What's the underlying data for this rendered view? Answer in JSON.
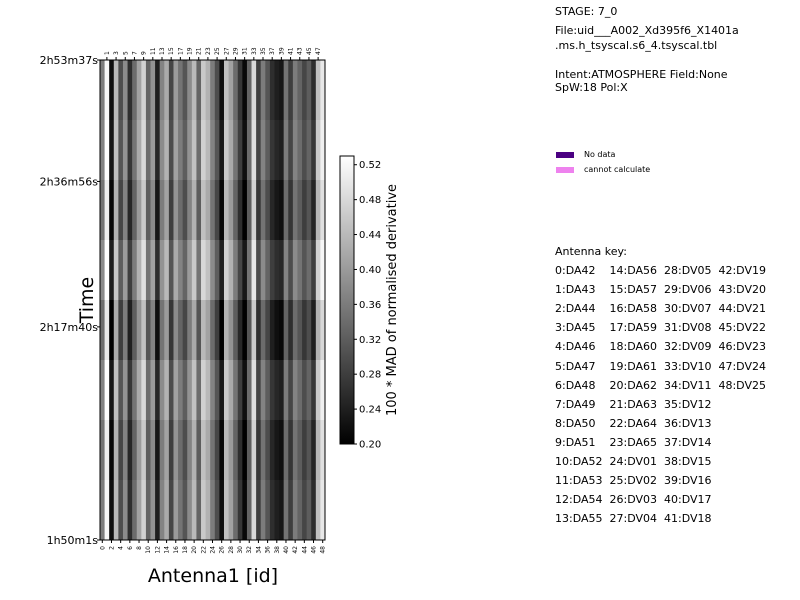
{
  "info": {
    "stage": "STAGE: 7_0",
    "file_line1": "File:uid___A002_Xd395f6_X1401a",
    "file_line2": ".ms.h_tsyscal.s6_4.tsyscal.tbl",
    "intent": "Intent:ATMOSPHERE Field:None",
    "spw": "SpW:18 Pol:X"
  },
  "legend": {
    "items": [
      {
        "label": "No data",
        "color": "#4b0082"
      },
      {
        "label": "cannot calculate",
        "color": "#ee82ee"
      }
    ]
  },
  "antenna_key": {
    "title": "Antenna key:",
    "lines": [
      "0:DA42    14:DA56  28:DV05  42:DV19",
      "1:DA43    15:DA57  29:DV06  43:DV20",
      "2:DA44    16:DA58  30:DV07  44:DV21",
      "3:DA45    17:DA59  31:DV08  45:DV22",
      "4:DA46    18:DA60  32:DV09  46:DV23",
      "5:DA47    19:DA61  33:DV10  47:DV24",
      "6:DA48    20:DA62  34:DV11  48:DV25",
      "7:DA49    21:DA63  35:DV12",
      "8:DA50    22:DA64  36:DV13",
      "9:DA51    23:DA65  37:DV14",
      "10:DA52  24:DV01  38:DV15",
      "11:DA53  25:DV02  39:DV16",
      "12:DA54  26:DV03  40:DV17",
      "13:DA55  27:DV04  41:DV18"
    ]
  },
  "chart_data": {
    "type": "heatmap",
    "xlabel": "Antenna1 [id]",
    "ylabel": "Time",
    "colorbar_label": "100 * MAD of normalised derivative",
    "x_range": [
      0,
      48
    ],
    "x_ticks_bottom": [
      0,
      2,
      4,
      6,
      8,
      10,
      12,
      14,
      16,
      18,
      20,
      22,
      24,
      26,
      28,
      30,
      32,
      34,
      36,
      38,
      40,
      42,
      44,
      46,
      48
    ],
    "x_ticks_top": [
      1,
      3,
      5,
      7,
      9,
      11,
      13,
      15,
      17,
      19,
      21,
      23,
      25,
      27,
      29,
      31,
      33,
      35,
      37,
      39,
      41,
      43,
      45,
      47
    ],
    "y_ticks": [
      "2h53m37s",
      "2h36m56s",
      "2h17m40s",
      "1h50m1s"
    ],
    "colorbar_range": [
      0.2,
      0.53
    ],
    "colorbar_ticks": [
      "0.52",
      "0.48",
      "0.44",
      "0.40",
      "0.36",
      "0.32",
      "0.28",
      "0.24",
      "0.20"
    ],
    "colormap": "gray",
    "n_time_rows": 8,
    "antenna_base_values": [
      0.36,
      0.52,
      0.22,
      0.44,
      0.3,
      0.38,
      0.26,
      0.34,
      0.41,
      0.47,
      0.33,
      0.39,
      0.24,
      0.37,
      0.42,
      0.29,
      0.4,
      0.35,
      0.31,
      0.38,
      0.44,
      0.33,
      0.46,
      0.43,
      0.36,
      0.3,
      0.22,
      0.45,
      0.41,
      0.34,
      0.27,
      0.21,
      0.33,
      0.48,
      0.28,
      0.36,
      0.31,
      0.26,
      0.24,
      0.23,
      0.35,
      0.28,
      0.36,
      0.33,
      0.29,
      0.32,
      0.26,
      0.45,
      0.5
    ],
    "time_row_offsets": [
      0.0,
      0.01,
      -0.01,
      0.02,
      -0.02,
      0.01,
      -0.01,
      0.0
    ]
  }
}
